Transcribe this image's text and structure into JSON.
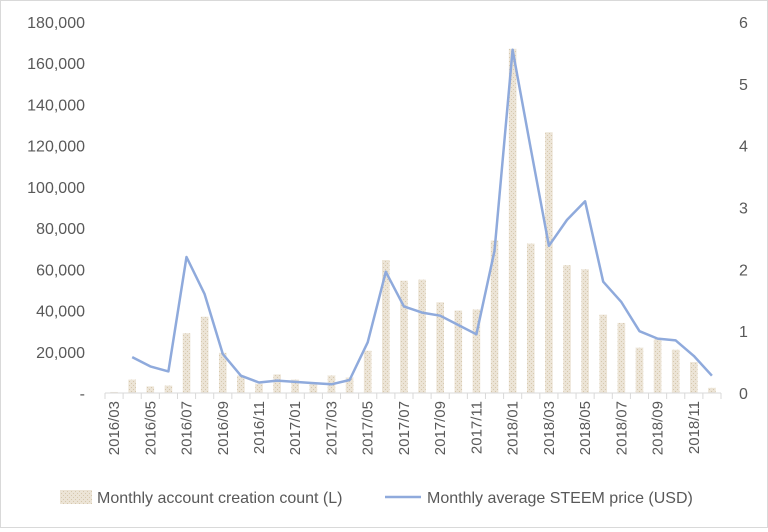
{
  "chart_data": {
    "type": "bar+line",
    "categories": [
      "2016/03",
      "2016/04",
      "2016/05",
      "2016/06",
      "2016/07",
      "2016/08",
      "2016/09",
      "2016/10",
      "2016/11",
      "2016/12",
      "2017/01",
      "2017/02",
      "2017/03",
      "2017/04",
      "2017/05",
      "2017/06",
      "2017/07",
      "2017/08",
      "2017/09",
      "2017/10",
      "2017/11",
      "2017/12",
      "2018/01",
      "2018/02",
      "2018/03",
      "2018/04",
      "2018/05",
      "2018/06",
      "2018/07",
      "2018/08",
      "2018/09",
      "2018/10",
      "2018/11",
      "2018/12"
    ],
    "x_tick_labels": [
      "2016/03",
      "2016/05",
      "2016/07",
      "2016/09",
      "2016/11",
      "2017/01",
      "2017/03",
      "2017/05",
      "2017/07",
      "2017/09",
      "2017/11",
      "2018/01",
      "2018/03",
      "2018/05",
      "2018/07",
      "2018/09",
      "2018/11"
    ],
    "series": [
      {
        "name": "Monthly account creation count (L)",
        "type": "bar",
        "axis": "left",
        "color": "#e6dccb",
        "values": [
          500,
          6500,
          3200,
          3600,
          29000,
          37000,
          19500,
          8500,
          4500,
          9000,
          6500,
          5000,
          8500,
          7500,
          20500,
          64500,
          54500,
          55000,
          44000,
          40000,
          40500,
          74000,
          167000,
          72500,
          126500,
          62000,
          60000,
          38000,
          34000,
          22000,
          26000,
          21000,
          15000,
          2500
        ]
      },
      {
        "name": "Monthly average STEEM price (USD)",
        "type": "line",
        "axis": "right",
        "color": "#8faadc",
        "values": [
          null,
          0.58,
          0.43,
          0.35,
          2.2,
          1.6,
          0.63,
          0.28,
          0.17,
          0.2,
          0.18,
          0.16,
          0.14,
          0.21,
          0.82,
          1.96,
          1.4,
          1.3,
          1.25,
          1.1,
          0.95,
          2.3,
          5.55,
          3.95,
          2.38,
          2.8,
          3.1,
          1.8,
          1.47,
          1.0,
          0.88,
          0.85,
          0.6,
          0.28
        ]
      }
    ],
    "y_left": {
      "min": 0,
      "max": 180000,
      "ticks": [
        0,
        20000,
        40000,
        60000,
        80000,
        100000,
        120000,
        140000,
        160000,
        180000
      ],
      "tick_labels": [
        "-",
        "20,000",
        "40,000",
        "60,000",
        "80,000",
        "100,000",
        "120,000",
        "140,000",
        "160,000",
        "180,000"
      ]
    },
    "y_right": {
      "min": 0,
      "max": 6,
      "ticks": [
        0,
        1,
        2,
        3,
        4,
        5,
        6
      ],
      "tick_labels": [
        "0",
        "1",
        "2",
        "3",
        "4",
        "5",
        "6"
      ]
    },
    "grid": false,
    "legend": "bottom"
  }
}
